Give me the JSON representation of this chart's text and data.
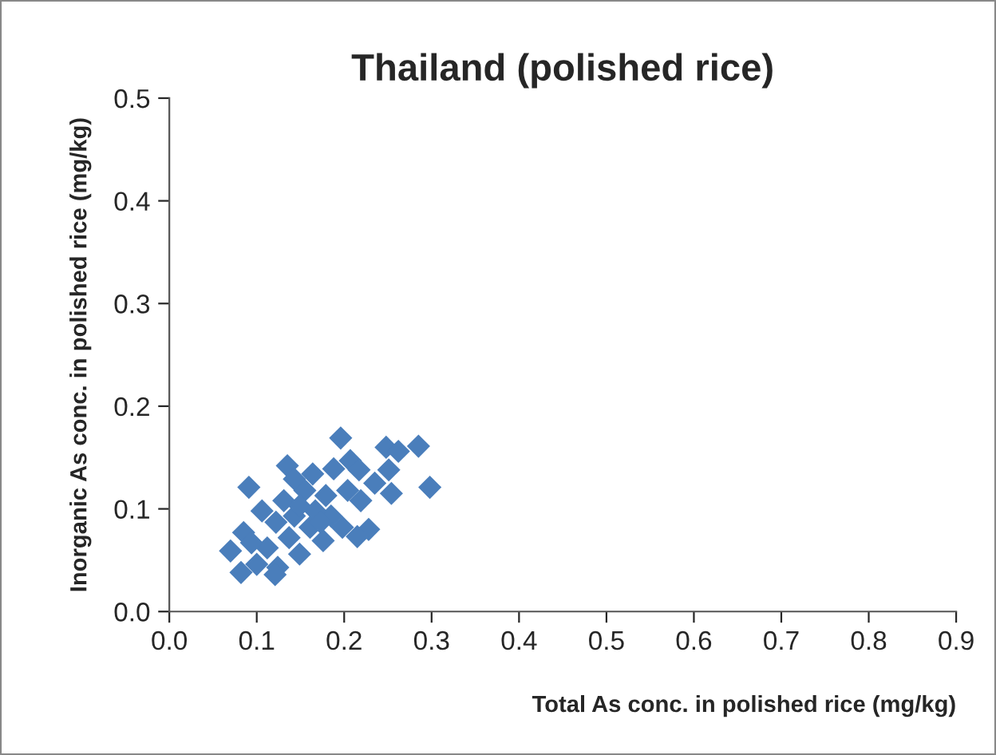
{
  "chart_data": {
    "type": "scatter",
    "title": "Thailand (polished rice)",
    "xlabel": "Total As conc. in polished rice (mg/kg)",
    "ylabel": "Inorganic As conc. in polished rice (mg/kg)",
    "x": [
      0.196,
      0.248,
      0.262,
      0.285,
      0.298,
      0.091,
      0.135,
      0.251,
      0.235,
      0.254,
      0.207,
      0.217,
      0.188,
      0.164,
      0.228,
      0.215,
      0.219,
      0.198,
      0.176,
      0.149,
      0.124,
      0.082,
      0.085,
      0.106,
      0.131,
      0.155,
      0.179,
      0.204,
      0.185,
      0.161,
      0.137,
      0.112,
      0.1,
      0.094,
      0.143,
      0.167,
      0.122,
      0.149,
      0.173,
      0.143,
      0.121,
      0.07
    ],
    "values": [
      0.169,
      0.16,
      0.156,
      0.161,
      0.121,
      0.121,
      0.142,
      0.138,
      0.125,
      0.115,
      0.147,
      0.138,
      0.139,
      0.134,
      0.08,
      0.073,
      0.108,
      0.082,
      0.069,
      0.056,
      0.043,
      0.038,
      0.077,
      0.098,
      0.108,
      0.118,
      0.113,
      0.118,
      0.093,
      0.082,
      0.072,
      0.062,
      0.046,
      0.067,
      0.093,
      0.098,
      0.087,
      0.103,
      0.087,
      0.129,
      0.036,
      0.059
    ],
    "color": "#4a7ebb",
    "marker": "diamond",
    "grid": false,
    "xlim": [
      0,
      0.9
    ],
    "xticks": [
      {
        "value": 0,
        "label": "0.0"
      },
      0.1,
      0.2,
      0.3,
      0.4,
      0.5,
      0.6,
      0.7,
      0.8,
      0.9
    ],
    "ylim": [
      0,
      0.5
    ],
    "yticks": [
      {
        "value": 0,
        "label": "0.0"
      },
      0.1,
      0.2,
      0.3,
      0.4,
      0.5
    ]
  }
}
